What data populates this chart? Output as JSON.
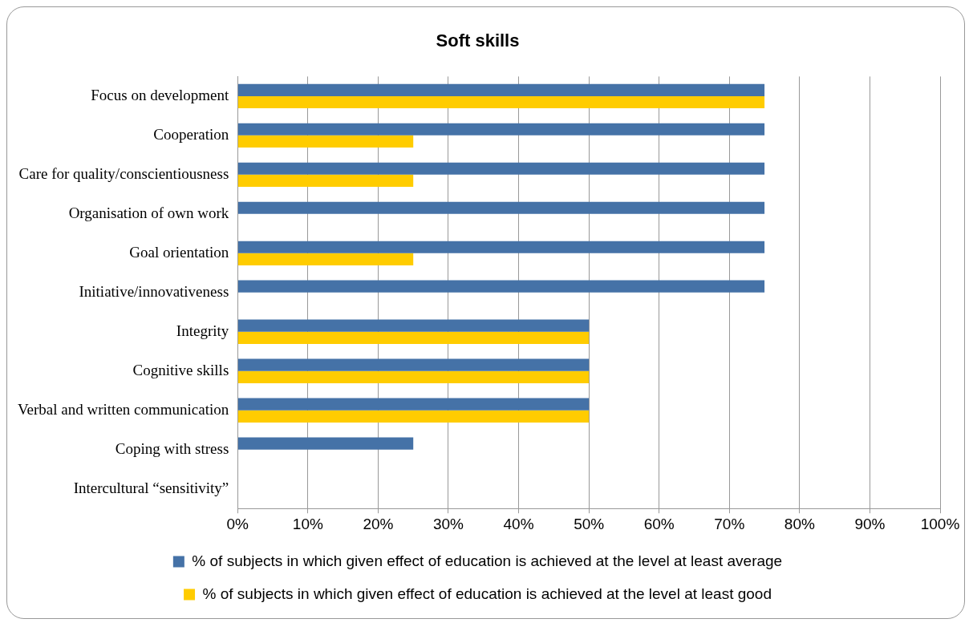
{
  "chart_data": {
    "type": "bar",
    "orientation": "horizontal",
    "title": "Soft skills",
    "categories": [
      "Focus on development",
      "Cooperation",
      "Care for quality/conscientiousness",
      "Organisation of own work",
      "Goal orientation",
      "Initiative/innovativeness",
      "Integrity",
      "Cognitive skills",
      "Verbal and written communication",
      "Coping with stress",
      "Intercultural “sensitivity”"
    ],
    "series": [
      {
        "name": "% of subjects in which given effect of education is achieved at the level at least average",
        "color": "#4572a7",
        "values": [
          75,
          75,
          75,
          75,
          75,
          75,
          50,
          50,
          50,
          25,
          0
        ]
      },
      {
        "name": "% of subjects in which given effect of education is achieved at the level at least good",
        "color": "#ffcc00",
        "values": [
          75,
          25,
          25,
          0,
          25,
          0,
          50,
          50,
          50,
          0,
          0
        ]
      }
    ],
    "xlim": [
      0,
      100
    ],
    "xticks": [
      {
        "value": 0,
        "label": "0%"
      },
      {
        "value": 10,
        "label": "10%"
      },
      {
        "value": 20,
        "label": "20%"
      },
      {
        "value": 30,
        "label": "30%"
      },
      {
        "value": 40,
        "label": "40%"
      },
      {
        "value": 50,
        "label": "50%"
      },
      {
        "value": 60,
        "label": "60%"
      },
      {
        "value": 70,
        "label": "70%"
      },
      {
        "value": 80,
        "label": "80%"
      },
      {
        "value": 90,
        "label": "90%"
      },
      {
        "value": 100,
        "label": "100%"
      }
    ],
    "grid": "x",
    "legend": "bottom"
  }
}
